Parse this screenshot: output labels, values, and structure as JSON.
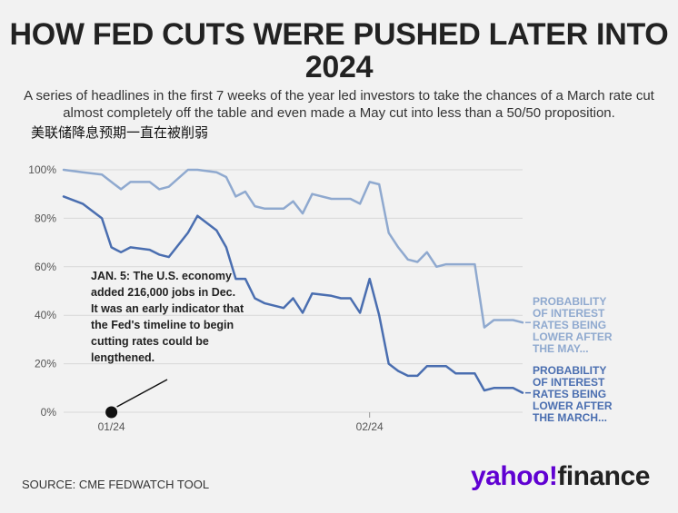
{
  "header": {
    "title": "HOW FED CUTS WERE PUSHED LATER INTO 2024",
    "subtitle": "A series of headlines in the first 7 weeks of the year led investors to take the chances of a March rate cut almost completely off the table and even made a May cut into less than a 50/50 proposition.",
    "note_zh": "美联储降息预期一直在被削弱"
  },
  "footer": {
    "source": "SOURCE: CME FEDWATCH TOOL",
    "logo_part1": "yahoo!",
    "logo_part2": "finance"
  },
  "chart_data": {
    "type": "line",
    "ylim": [
      0,
      100
    ],
    "y_ticks": [
      "0%",
      "20%",
      "40%",
      "60%",
      "80%",
      "100%"
    ],
    "x_ticks": [
      "01/24",
      "02/24"
    ],
    "grid": true,
    "annotation": {
      "text": [
        "JAN. 5: The U.S. economy",
        "added 216,000 jobs in Dec.",
        "It was an early indicator that",
        "the Fed's timeline to begin",
        "cutting rates could be",
        "lengthened."
      ],
      "point_x": 5,
      "point_y": 0
    },
    "series": [
      {
        "name": "PROBABILITY OF INTEREST RATES BEING LOWER AFTER THE MAY...",
        "label_lines": [
          "PROBABILITY",
          "OF INTEREST",
          "RATES BEING",
          "LOWER AFTER",
          "THE MAY..."
        ],
        "color": "#8fa9cf",
        "x": [
          0,
          2,
          4,
          5,
          6,
          7,
          9,
          10,
          11,
          13,
          14,
          16,
          17,
          18,
          19,
          20,
          21,
          23,
          24,
          25,
          26,
          28,
          29,
          30,
          31,
          32,
          33,
          34,
          35,
          36,
          37,
          38,
          39,
          40,
          41,
          43,
          44,
          45,
          47,
          48
        ],
        "values": [
          100,
          99,
          98,
          95,
          92,
          95,
          95,
          92,
          93,
          100,
          100,
          99,
          97,
          89,
          91,
          85,
          84,
          84,
          87,
          82,
          90,
          88,
          88,
          88,
          86,
          95,
          94,
          74,
          68,
          63,
          62,
          66,
          60,
          61,
          61,
          61,
          35,
          38,
          38,
          37
        ]
      },
      {
        "name": "PROBABILITY OF INTEREST RATES BEING LOWER AFTER THE MARCH...",
        "label_lines": [
          "PROBABILITY",
          "OF INTEREST",
          "RATES BEING",
          "LOWER AFTER",
          "THE MARCH..."
        ],
        "color": "#4a6eb0",
        "x": [
          0,
          2,
          4,
          5,
          6,
          7,
          9,
          10,
          11,
          13,
          14,
          16,
          17,
          18,
          19,
          20,
          21,
          23,
          24,
          25,
          26,
          28,
          29,
          30,
          31,
          32,
          33,
          34,
          35,
          36,
          37,
          38,
          39,
          40,
          41,
          43,
          44,
          45,
          47,
          48
        ],
        "values": [
          89,
          86,
          80,
          68,
          66,
          68,
          67,
          65,
          64,
          74,
          81,
          75,
          68,
          55,
          55,
          47,
          45,
          43,
          47,
          41,
          49,
          48,
          47,
          47,
          41,
          55,
          40,
          20,
          17,
          15,
          15,
          19,
          19,
          19,
          16,
          16,
          9,
          10,
          10,
          8
        ]
      }
    ]
  }
}
